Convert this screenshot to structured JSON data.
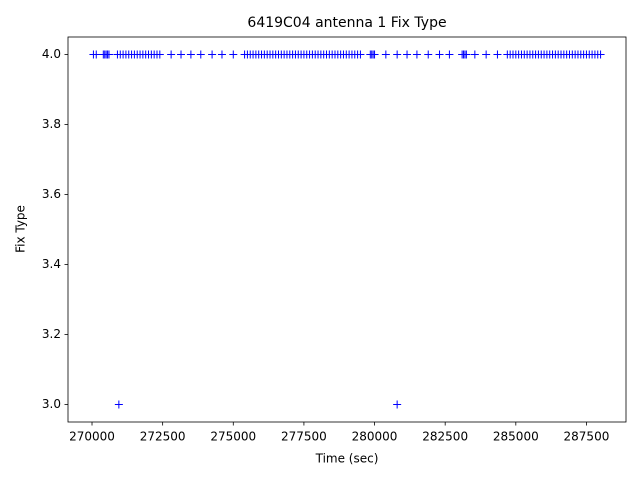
{
  "chart_data": {
    "type": "scatter",
    "title": "6419C04 antenna 1 Fix Type",
    "xlabel": "Time (sec)",
    "ylabel": "Fix Type",
    "color": "#0000ff",
    "marker": "+",
    "x": [
      270050,
      270150,
      270400,
      270450,
      270500,
      270550,
      270600,
      270900,
      271000,
      271100,
      271200,
      271300,
      271400,
      271500,
      271600,
      271700,
      271800,
      271900,
      272000,
      272100,
      272200,
      272300,
      272400,
      272800,
      273150,
      273500,
      273850,
      274250,
      274600,
      275000,
      275400,
      275500,
      275600,
      275700,
      275800,
      275900,
      276000,
      276100,
      276200,
      276300,
      276400,
      276500,
      276600,
      276700,
      276800,
      276900,
      277000,
      277100,
      277200,
      277300,
      277400,
      277500,
      277600,
      277700,
      277800,
      277900,
      278000,
      278100,
      278200,
      278300,
      278400,
      278500,
      278600,
      278700,
      278800,
      278900,
      279000,
      279100,
      279200,
      279300,
      279400,
      279500,
      279850,
      279900,
      279950,
      280000,
      280400,
      280800,
      281150,
      281500,
      281900,
      282300,
      282650,
      283100,
      283150,
      283200,
      283250,
      283550,
      283950,
      284350,
      284700,
      284800,
      284900,
      285000,
      285100,
      285200,
      285300,
      285400,
      285500,
      285600,
      285700,
      285800,
      285900,
      286000,
      286100,
      286200,
      286300,
      286400,
      286500,
      286600,
      286700,
      286800,
      286900,
      287000,
      287100,
      287200,
      287300,
      287400,
      287500,
      287600,
      287700,
      287800,
      287900,
      288000,
      270950,
      280800
    ],
    "values": [
      4,
      4,
      4,
      4,
      4,
      4,
      4,
      4,
      4,
      4,
      4,
      4,
      4,
      4,
      4,
      4,
      4,
      4,
      4,
      4,
      4,
      4,
      4,
      4,
      4,
      4,
      4,
      4,
      4,
      4,
      4,
      4,
      4,
      4,
      4,
      4,
      4,
      4,
      4,
      4,
      4,
      4,
      4,
      4,
      4,
      4,
      4,
      4,
      4,
      4,
      4,
      4,
      4,
      4,
      4,
      4,
      4,
      4,
      4,
      4,
      4,
      4,
      4,
      4,
      4,
      4,
      4,
      4,
      4,
      4,
      4,
      4,
      4,
      4,
      4,
      4,
      4,
      4,
      4,
      4,
      4,
      4,
      4,
      4,
      4,
      4,
      4,
      4,
      4,
      4,
      4,
      4,
      4,
      4,
      4,
      4,
      4,
      4,
      4,
      4,
      4,
      4,
      4,
      4,
      4,
      4,
      4,
      4,
      4,
      4,
      4,
      4,
      4,
      4,
      4,
      4,
      4,
      4,
      4,
      4,
      4,
      4,
      4,
      4,
      3,
      3
    ],
    "xlim": [
      269150,
      288900
    ],
    "xticks": [
      270000,
      272500,
      275000,
      277500,
      280000,
      282500,
      285000,
      287500
    ],
    "ylim": [
      2.95,
      4.05
    ],
    "yticks": [
      {
        "value": 3,
        "label": "3.0"
      },
      {
        "value": 3.2,
        "label": "3.2"
      },
      {
        "value": 3.4,
        "label": "3.4"
      },
      {
        "value": 3.6,
        "label": "3.6"
      },
      {
        "value": 3.8,
        "label": "3.8"
      },
      {
        "value": 4,
        "label": "4.0"
      }
    ],
    "grid": false
  }
}
